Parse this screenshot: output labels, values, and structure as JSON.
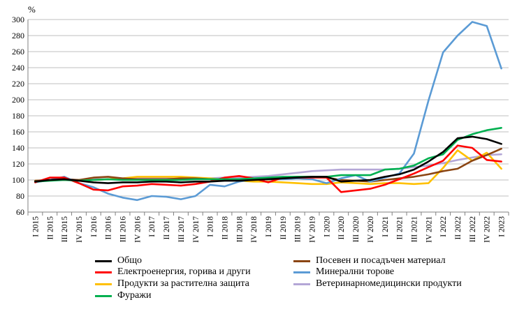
{
  "chart_data": {
    "type": "line",
    "ylabel": "%",
    "ylim": [
      60,
      300
    ],
    "yticks": [
      60,
      80,
      100,
      120,
      140,
      160,
      180,
      200,
      220,
      240,
      260,
      280,
      300
    ],
    "grid": "horizontal",
    "legend_position": "bottom",
    "categories": [
      "I 2015",
      "II 2015",
      "III 2015",
      "IV 2015",
      "I 2016",
      "II 2016",
      "III 2016",
      "IV 2016",
      "I 2017",
      "II 2017",
      "III 2017",
      "IV 2017",
      "I 2018",
      "II 2018",
      "III 2018",
      "IV 2018",
      "I 2019",
      "II 2019",
      "III 2019",
      "IV 2019",
      "I 2020",
      "II 2020",
      "III 2020",
      "IV 2020",
      "I 2021",
      "II 2021",
      "III 2021",
      "IV 2021",
      "I 2022",
      "II 2022",
      "III 2022",
      "IV 2022",
      "I 2023"
    ],
    "series": [
      {
        "name": "Общо",
        "color": "#000000",
        "values": [
          98,
          100,
          101,
          99,
          97,
          96,
          97,
          97,
          98,
          98,
          97,
          98,
          98,
          99,
          99,
          100,
          101,
          102,
          103,
          104,
          104,
          98,
          99,
          100,
          104,
          107,
          113,
          123,
          135,
          152,
          154,
          151,
          145
        ]
      },
      {
        "name": "Посевен и посадъчен материал",
        "color": "#8B4513",
        "values": [
          99,
          100,
          101,
          100,
          103,
          104,
          102,
          101,
          101,
          101,
          102,
          102,
          101,
          100,
          100,
          101,
          102,
          103,
          104,
          104,
          103,
          100,
          99,
          98,
          100,
          102,
          104,
          107,
          111,
          114,
          124,
          131,
          139
        ]
      },
      {
        "name": "Електроенергия, горива и други",
        "color": "#FF0000",
        "values": [
          97,
          103,
          103,
          96,
          88,
          87,
          92,
          93,
          95,
          94,
          93,
          95,
          98,
          103,
          105,
          102,
          97,
          103,
          103,
          103,
          103,
          85,
          87,
          89,
          94,
          101,
          108,
          116,
          124,
          143,
          140,
          125,
          123
        ]
      },
      {
        "name": "Минерални торове",
        "color": "#5B9BD5",
        "values": [
          97,
          100,
          104,
          96,
          91,
          83,
          78,
          75,
          80,
          79,
          76,
          80,
          94,
          92,
          98,
          101,
          101,
          101,
          102,
          101,
          96,
          102,
          106,
          98,
          103,
          108,
          133,
          199,
          259,
          280,
          297,
          292,
          239
        ]
      },
      {
        "name": "Продукти за растителна защита",
        "color": "#FFC000",
        "values": [
          99,
          100,
          100,
          100,
          100,
          101,
          102,
          104,
          104,
          104,
          104,
          103,
          102,
          100,
          99,
          98,
          98,
          97,
          96,
          95,
          95,
          97,
          96,
          95,
          96,
          96,
          95,
          96,
          115,
          137,
          124,
          134,
          114
        ]
      },
      {
        "name": "Ветеринарномедицински продукти",
        "color": "#B4A7D6",
        "values": [
          99,
          100,
          101,
          100,
          101,
          101,
          102,
          103,
          102,
          102,
          101,
          101,
          102,
          103,
          103,
          104,
          105,
          107,
          109,
          111,
          112,
          113,
          113,
          113,
          113,
          114,
          116,
          118,
          121,
          125,
          128,
          131,
          132
        ]
      },
      {
        "name": "Фуражи",
        "color": "#00B050",
        "values": [
          98,
          99,
          100,
          99,
          100,
          101,
          100,
          100,
          100,
          100,
          100,
          101,
          101,
          101,
          101,
          102,
          103,
          104,
          104,
          104,
          104,
          106,
          106,
          106,
          113,
          114,
          118,
          127,
          132,
          150,
          157,
          162,
          165
        ]
      }
    ]
  }
}
